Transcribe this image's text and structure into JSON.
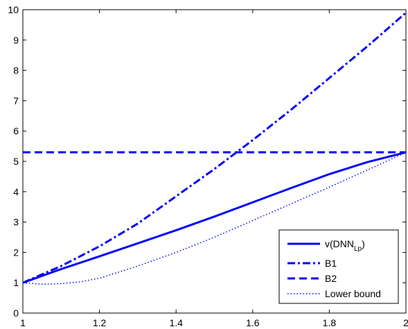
{
  "chart_data": {
    "type": "line",
    "title": "",
    "xlabel": "",
    "ylabel": "",
    "xlim": [
      1,
      2
    ],
    "ylim": [
      0,
      10
    ],
    "grid": false,
    "legend_position": "bottom-right",
    "x_ticks": [
      1,
      1.2,
      1.4,
      1.6,
      1.8,
      2
    ],
    "x_tick_labels": [
      "1",
      "1.2",
      "1.4",
      "1.6",
      "1.8",
      "2"
    ],
    "y_ticks": [
      0,
      1,
      2,
      3,
      4,
      5,
      6,
      7,
      8,
      9,
      10
    ],
    "y_tick_labels": [
      "0",
      "1",
      "2",
      "3",
      "4",
      "5",
      "6",
      "7",
      "8",
      "9",
      "10"
    ],
    "color": "#0000ff",
    "series": [
      {
        "name": "v(DNN_Lp)",
        "legend_main": "v(DNN",
        "legend_sub": "Lp",
        "legend_tail": ")",
        "style": "solid",
        "x": [
          1.0,
          1.1,
          1.2,
          1.3,
          1.4,
          1.5,
          1.6,
          1.7,
          1.8,
          1.9,
          2.0
        ],
        "y": [
          1.0,
          1.45,
          1.87,
          2.3,
          2.73,
          3.18,
          3.65,
          4.12,
          4.58,
          4.98,
          5.3
        ]
      },
      {
        "name": "B1",
        "style": "dashdot",
        "x": [
          1.0,
          1.1,
          1.2,
          1.3,
          1.4,
          1.5,
          1.6,
          1.7,
          1.8,
          1.9,
          2.0
        ],
        "y": [
          1.0,
          1.55,
          2.2,
          2.95,
          3.85,
          4.75,
          5.7,
          6.7,
          7.75,
          8.8,
          9.9
        ]
      },
      {
        "name": "B2",
        "style": "dashed",
        "x": [
          1.0,
          2.0
        ],
        "y": [
          5.3,
          5.3
        ]
      },
      {
        "name": "Lower bound",
        "style": "dotted",
        "x": [
          1.0,
          1.05,
          1.1,
          1.15,
          1.2,
          1.3,
          1.4,
          1.5,
          1.6,
          1.7,
          1.8,
          1.9,
          2.0
        ],
        "y": [
          1.0,
          0.95,
          0.97,
          1.03,
          1.15,
          1.55,
          2.0,
          2.5,
          3.05,
          3.6,
          4.15,
          4.72,
          5.3
        ]
      }
    ]
  }
}
